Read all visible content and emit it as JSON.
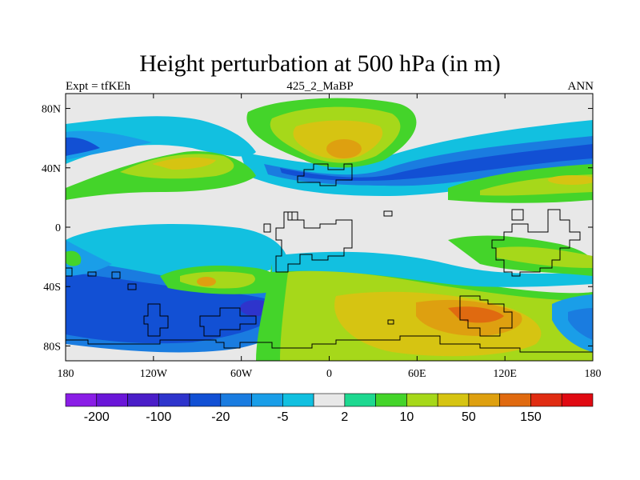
{
  "title": "Height perturbation at 500 hPa (in m)",
  "left_label": "Expt = tfKEh",
  "center_label": "425_2_MaBP",
  "right_label": "ANN",
  "lon_ticks": [
    {
      "lon": -180,
      "label": "180"
    },
    {
      "lon": -120,
      "label": "120W"
    },
    {
      "lon": -60,
      "label": "60W"
    },
    {
      "lon": 0,
      "label": "0"
    },
    {
      "lon": 60,
      "label": "60E"
    },
    {
      "lon": 120,
      "label": "120E"
    },
    {
      "lon": 180,
      "label": "180"
    }
  ],
  "lat_ticks": [
    {
      "lat": 80,
      "label": "80N"
    },
    {
      "lat": 40,
      "label": "40N"
    },
    {
      "lat": 0,
      "label": "0"
    },
    {
      "lat": -40,
      "label": "40S"
    },
    {
      "lat": -80,
      "label": "80S"
    }
  ],
  "colorbar": {
    "colors": [
      "#8a1ee6",
      "#6a16d8",
      "#4a1ec8",
      "#2e34cc",
      "#1250d4",
      "#1a7ce0",
      "#1a9ee8",
      "#12c0e0",
      "#e8e8e8",
      "#1ed890",
      "#44d42a",
      "#a6d81a",
      "#d6c412",
      "#dea010",
      "#e06a10",
      "#e02c12",
      "#e00a12"
    ],
    "labels": [
      {
        "boundary": 1,
        "text": "-200"
      },
      {
        "boundary": 3,
        "text": "-100"
      },
      {
        "boundary": 5,
        "text": "-20"
      },
      {
        "boundary": 7,
        "text": "-5"
      },
      {
        "boundary": 9,
        "text": "2"
      },
      {
        "boundary": 11,
        "text": "10"
      },
      {
        "boundary": 13,
        "text": "50"
      },
      {
        "boundary": 15,
        "text": "150"
      }
    ]
  }
}
